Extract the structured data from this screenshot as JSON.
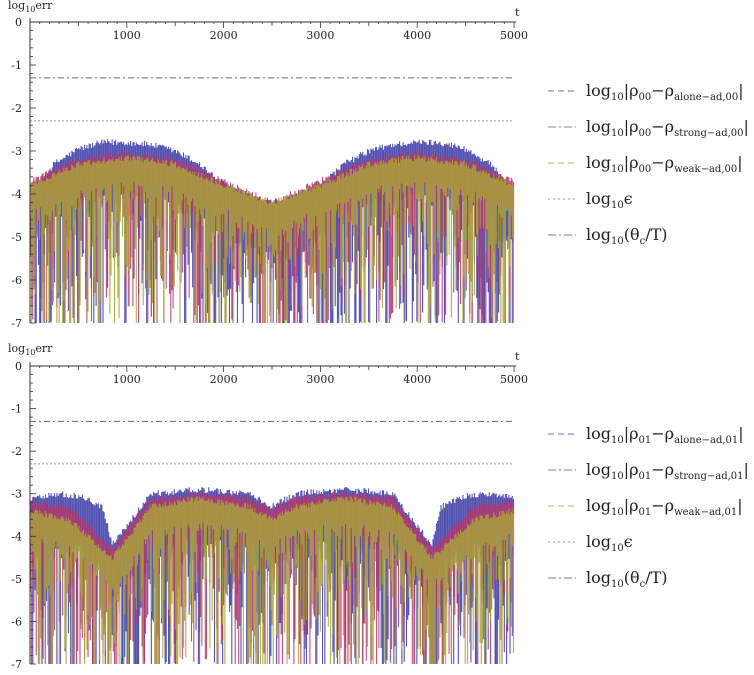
{
  "chart_data": [
    {
      "type": "line",
      "ylabel": "log10err",
      "xlabel": "t",
      "xlim": [
        0,
        5000
      ],
      "ylim": [
        -7,
        0
      ],
      "xticks": [
        1000,
        2000,
        3000,
        4000,
        5000
      ],
      "yticks": [
        0,
        -1,
        -2,
        -3,
        -4,
        -5,
        -6,
        -7
      ],
      "series": [
        {
          "name": "log10|ρ00−ρalone−ad,00|",
          "color": "#3b3ba6",
          "x": [
            0,
            250,
            500,
            750,
            1000,
            1250,
            1500,
            1750,
            1900,
            2100,
            2300,
            2500,
            2700,
            2900,
            3100,
            3250,
            3500,
            3750,
            4000,
            4250,
            4500,
            4750,
            5000
          ],
          "y": [
            -4.0,
            -3.3,
            -2.95,
            -2.8,
            -2.8,
            -2.85,
            -3.0,
            -3.3,
            -3.6,
            -3.9,
            -4.1,
            -4.2,
            -4.1,
            -3.9,
            -3.6,
            -3.3,
            -3.0,
            -2.85,
            -2.8,
            -2.8,
            -2.95,
            -3.3,
            -3.9
          ]
        },
        {
          "name": "log10|ρ00−ρstrong−ad,00|",
          "color": "#b0386e",
          "x": [
            0,
            500,
            1000,
            1500,
            2000,
            2500,
            3000,
            3500,
            4000,
            4500,
            5000
          ],
          "y": [
            -3.7,
            -3.2,
            -3.05,
            -3.2,
            -3.7,
            -4.2,
            -3.7,
            -3.2,
            -3.05,
            -3.2,
            -3.7
          ]
        },
        {
          "name": "log10|ρ00−ρweak−ad,00|",
          "color": "#a9a13a",
          "x": [
            0,
            500,
            1000,
            1500,
            2000,
            2500,
            3000,
            3500,
            4000,
            4500,
            5000
          ],
          "y": [
            -3.8,
            -3.3,
            -3.15,
            -3.3,
            -3.8,
            -4.2,
            -3.8,
            -3.3,
            -3.15,
            -3.3,
            -3.8
          ]
        },
        {
          "name": "log10ϵ",
          "color": "#9a9a9a",
          "x": [
            0,
            5000
          ],
          "y": [
            -2.3,
            -2.3
          ]
        },
        {
          "name": "log10(θc/T)",
          "color": "#666666",
          "x": [
            0,
            5000
          ],
          "y": [
            -1.3,
            -1.3
          ]
        }
      ]
    },
    {
      "type": "line",
      "ylabel": "log10err",
      "xlabel": "t",
      "xlim": [
        0,
        5000
      ],
      "ylim": [
        -7,
        0
      ],
      "xticks": [
        1000,
        2000,
        3000,
        4000,
        5000
      ],
      "yticks": [
        0,
        -1,
        -2,
        -3,
        -4,
        -5,
        -6,
        -7
      ],
      "series": [
        {
          "name": "log10|ρ01−ρalone−ad,01|",
          "color": "#3b3ba6",
          "x": [
            0,
            250,
            500,
            750,
            850,
            1250,
            1750,
            2250,
            2500,
            2750,
            3250,
            3750,
            4150,
            4250,
            4500,
            4750,
            5000
          ],
          "y": [
            -3.1,
            -3.0,
            -3.05,
            -3.3,
            -4.2,
            -3.0,
            -2.9,
            -3.0,
            -3.3,
            -3.0,
            -2.9,
            -3.0,
            -4.2,
            -3.3,
            -3.05,
            -3.0,
            -3.1
          ]
        },
        {
          "name": "log10|ρ01−ρstrong−ad,01|",
          "color": "#b0386e",
          "x": [
            0,
            400,
            850,
            1250,
            1750,
            2250,
            2500,
            2750,
            3250,
            3750,
            4150,
            4600,
            5000
          ],
          "y": [
            -3.2,
            -3.3,
            -4.3,
            -3.1,
            -3.0,
            -3.1,
            -3.4,
            -3.1,
            -3.0,
            -3.1,
            -4.3,
            -3.3,
            -3.2
          ]
        },
        {
          "name": "log10|ρ01−ρweak−ad,01|",
          "color": "#a9a13a",
          "x": [
            0,
            400,
            850,
            1250,
            1750,
            2250,
            2500,
            2750,
            3250,
            3750,
            4150,
            4600,
            5000
          ],
          "y": [
            -3.4,
            -3.6,
            -4.5,
            -3.3,
            -3.1,
            -3.3,
            -3.6,
            -3.3,
            -3.1,
            -3.3,
            -4.5,
            -3.6,
            -3.4
          ]
        },
        {
          "name": "log10ϵ",
          "color": "#9a9a9a",
          "x": [
            0,
            5000
          ],
          "y": [
            -2.3,
            -2.3
          ]
        },
        {
          "name": "log10(θc/T)",
          "color": "#666666",
          "x": [
            0,
            5000
          ],
          "y": [
            -1.3,
            -1.3
          ]
        }
      ]
    }
  ],
  "legend_top": [
    {
      "pre": "log",
      "sub": "10",
      "expr": "|ρ",
      "esub": "00",
      "mid": "−ρ",
      "msub": "alone−ad,00",
      "post": "|",
      "color": "#8888c8",
      "dash": "6 4"
    },
    {
      "pre": "log",
      "sub": "10",
      "expr": "|ρ",
      "esub": "00",
      "mid": "−ρ",
      "msub": "strong−ad,00",
      "post": "|",
      "color": "#a0a0a0",
      "dash": "8 3 2 3"
    },
    {
      "pre": "log",
      "sub": "10",
      "expr": "|ρ",
      "esub": "00",
      "mid": "−ρ",
      "msub": "weak−ad,00",
      "post": "|",
      "color": "#c8c080",
      "dash": "6 4"
    },
    {
      "pre": "log",
      "sub": "10",
      "expr": "ϵ",
      "esub": "",
      "mid": "",
      "msub": "",
      "post": "",
      "color": "#c0a0b8",
      "dash": "2 3"
    },
    {
      "pre": "log",
      "sub": "10",
      "expr": "(θ",
      "esub": "c",
      "mid": "/T)",
      "msub": "",
      "post": "",
      "color": "#9090a8",
      "dash": "8 3 2 3"
    }
  ],
  "legend_bottom": [
    {
      "pre": "log",
      "sub": "10",
      "expr": "|ρ",
      "esub": "01",
      "mid": "−ρ",
      "msub": "alone−ad,01",
      "post": "|",
      "color": "#8888c8",
      "dash": "6 4"
    },
    {
      "pre": "log",
      "sub": "10",
      "expr": "|ρ",
      "esub": "01",
      "mid": "−ρ",
      "msub": "strong−ad,01",
      "post": "|",
      "color": "#a0a0a0",
      "dash": "8 3 2 3"
    },
    {
      "pre": "log",
      "sub": "10",
      "expr": "|ρ",
      "esub": "01",
      "mid": "−ρ",
      "msub": "weak−ad,01",
      "post": "|",
      "color": "#c8c080",
      "dash": "6 4"
    },
    {
      "pre": "log",
      "sub": "10",
      "expr": "ϵ",
      "esub": "",
      "mid": "",
      "msub": "",
      "post": "",
      "color": "#c0a0b8",
      "dash": "2 3"
    },
    {
      "pre": "log",
      "sub": "10",
      "expr": "(θ",
      "esub": "c",
      "mid": "/T)",
      "msub": "",
      "post": "",
      "color": "#9090a8",
      "dash": "8 3 2 3"
    }
  ]
}
